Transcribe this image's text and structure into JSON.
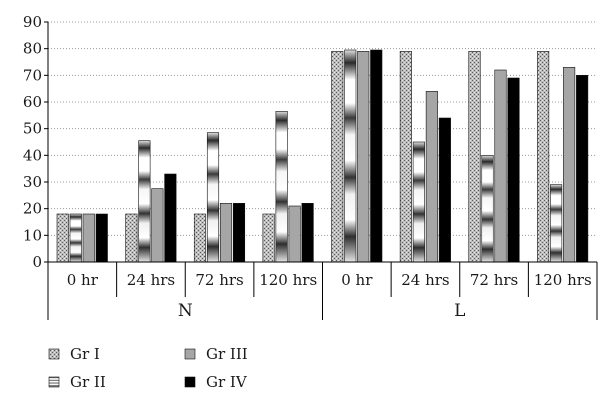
{
  "chart_data": {
    "type": "bar",
    "title": "",
    "xlabel": "",
    "ylabel": "",
    "ylim": [
      0,
      90
    ],
    "yticks": [
      0,
      10,
      20,
      30,
      40,
      50,
      60,
      70,
      80,
      90
    ],
    "grid": true,
    "legend_position": "bottom-left",
    "categories": [
      "0 hr",
      "24 hrs",
      "72 hrs",
      "120 hrs",
      "0 hr",
      "24 hrs",
      "72 hrs",
      "120 hrs"
    ],
    "groups": [
      {
        "label": "N",
        "span": [
          0,
          4
        ]
      },
      {
        "label": "L",
        "span": [
          4,
          8
        ]
      }
    ],
    "series": [
      {
        "name": "Gr I",
        "values": [
          18,
          18,
          18,
          18,
          79,
          79,
          79,
          79
        ]
      },
      {
        "name": "Gr II",
        "values": [
          18,
          45.5,
          48.5,
          56.5,
          79.5,
          45,
          40,
          29
        ]
      },
      {
        "name": "Gr III",
        "values": [
          18,
          27.5,
          22,
          21,
          79,
          64,
          72,
          73
        ]
      },
      {
        "name": "Gr IV",
        "values": [
          18,
          33,
          22,
          22,
          79.5,
          54,
          69,
          70
        ]
      }
    ],
    "series_styles": [
      {
        "fill": "url(#pat-grI)"
      },
      {
        "fill": "url(#grad-grII)"
      },
      {
        "fill": "#a6a6a6"
      },
      {
        "fill": "#000000"
      }
    ],
    "legend_order": [
      0,
      2,
      1,
      3
    ]
  }
}
